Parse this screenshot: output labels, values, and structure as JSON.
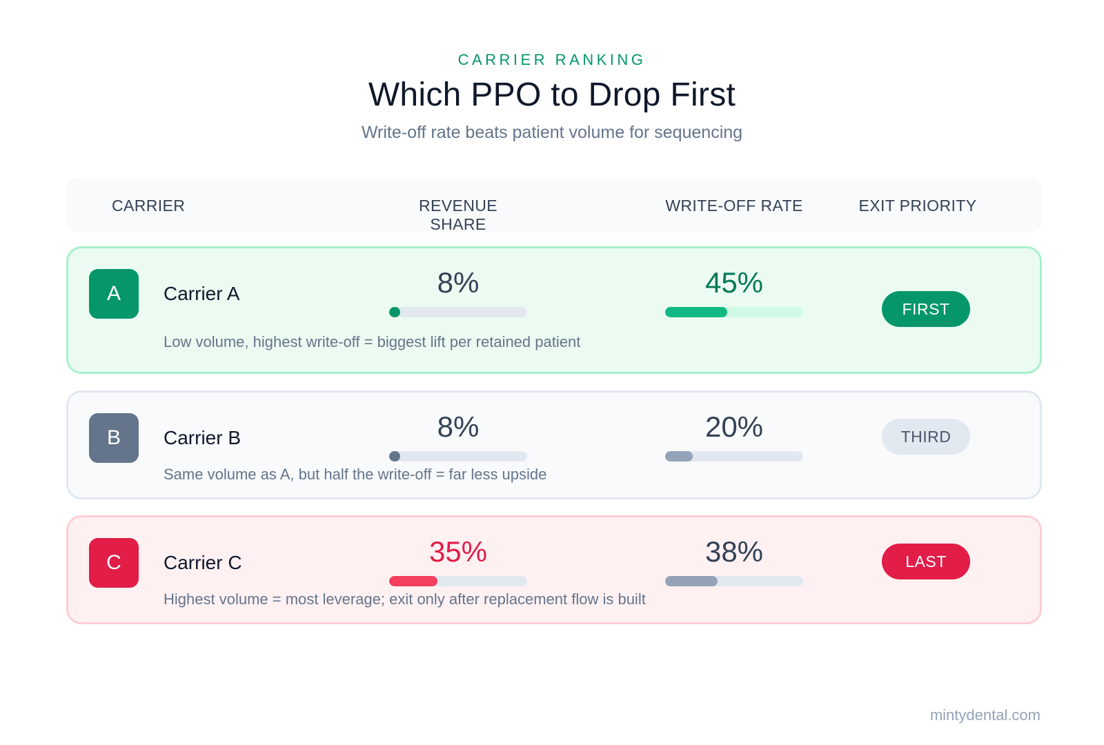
{
  "header": {
    "eyebrow": "CARRIER RANKING",
    "title": "Which PPO to Drop First",
    "subtitle": "Write-off rate beats patient volume for sequencing"
  },
  "columns": {
    "carrier": "CARRIER",
    "revenue": "REVENUE SHARE",
    "writeoff": "WRITE-OFF RATE",
    "priority": "EXIT PRIORITY"
  },
  "rows": [
    {
      "badge": "A",
      "name": "Carrier A",
      "note": "Low volume, highest write-off = biggest lift per retained patient",
      "revenue_label": "8%",
      "revenue_value": 8,
      "writeoff_label": "45%",
      "writeoff_value": 45,
      "priority": "FIRST",
      "colors": {
        "badge": "#059669",
        "revenue_text": "#334155",
        "writeoff_text": "#047857",
        "revenue_fill": "#059669",
        "writeoff_fill": "#10b981",
        "writeoff_track": "#d1fae5",
        "pill_bg": "#059669",
        "pill_text": "#ffffff"
      }
    },
    {
      "badge": "B",
      "name": "Carrier B",
      "note": "Same volume as A, but half the write-off = far less upside",
      "revenue_label": "8%",
      "revenue_value": 8,
      "writeoff_label": "20%",
      "writeoff_value": 20,
      "priority": "THIRD",
      "colors": {
        "badge": "#64748b",
        "revenue_text": "#334155",
        "writeoff_text": "#334155",
        "revenue_fill": "#64748b",
        "writeoff_fill": "#94a3b8",
        "writeoff_track": "#e2e8f0",
        "pill_bg": "#e2e8f0",
        "pill_text": "#475569"
      }
    },
    {
      "badge": "C",
      "name": "Carrier C",
      "note": "Highest volume = most leverage; exit only after replacement flow is built",
      "revenue_label": "35%",
      "revenue_value": 35,
      "writeoff_label": "38%",
      "writeoff_value": 38,
      "priority": "LAST",
      "colors": {
        "badge": "#e11d48",
        "revenue_text": "#e11d48",
        "writeoff_text": "#334155",
        "revenue_fill": "#f43f5e",
        "writeoff_fill": "#94a3b8",
        "writeoff_track": "#e2e8f0",
        "pill_bg": "#e11d48",
        "pill_text": "#ffffff"
      }
    }
  ],
  "footer": {
    "brand": "mintydental.com"
  }
}
